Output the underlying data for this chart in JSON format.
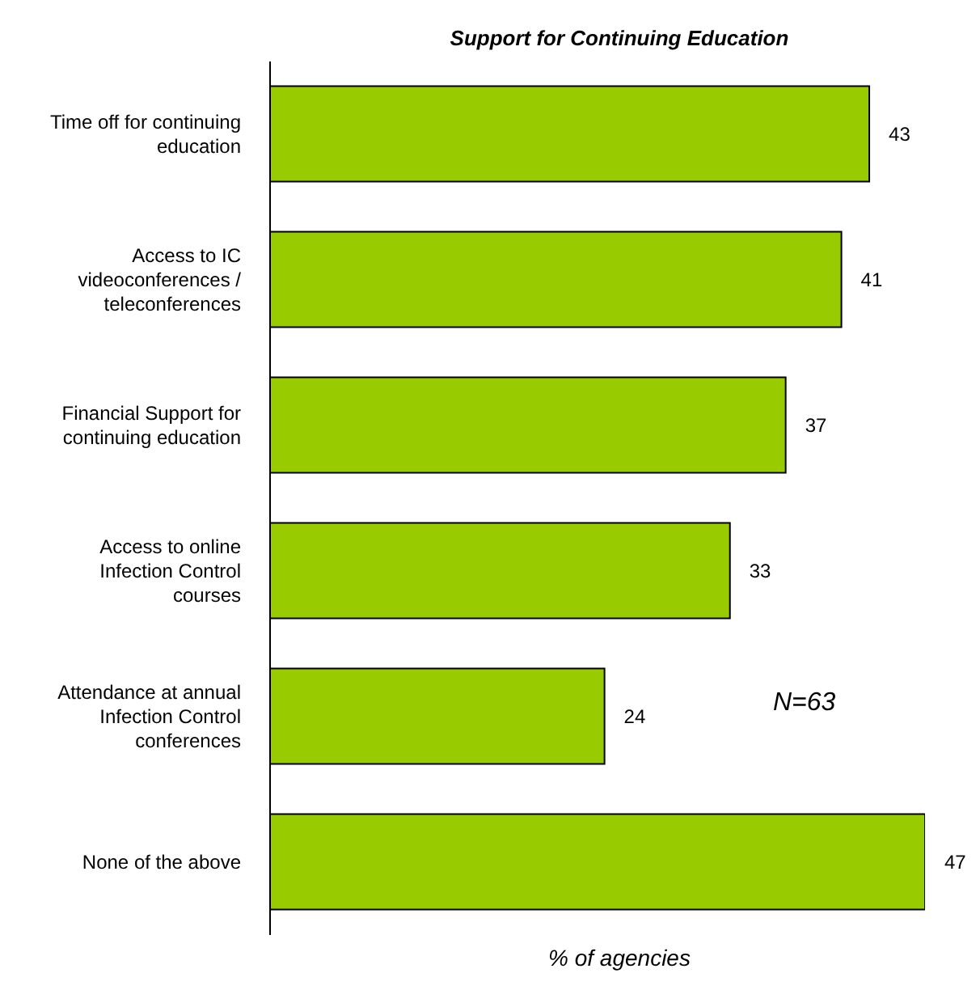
{
  "chart_data": {
    "type": "bar",
    "orientation": "horizontal",
    "title": "Support for Continuing Education",
    "xlabel": "% of agencies",
    "categories": [
      "Time off for continuing education",
      "Access to IC videoconferences / teleconferences",
      "Financial Support for continuing education",
      "Access to online Infection Control courses",
      "Attendance at annual Infection Control conferences",
      "None of the above"
    ],
    "values": [
      43,
      41,
      37,
      33,
      24,
      47
    ],
    "color": "#99cc00",
    "data_labels": true,
    "annotations": [
      "N=63"
    ]
  }
}
